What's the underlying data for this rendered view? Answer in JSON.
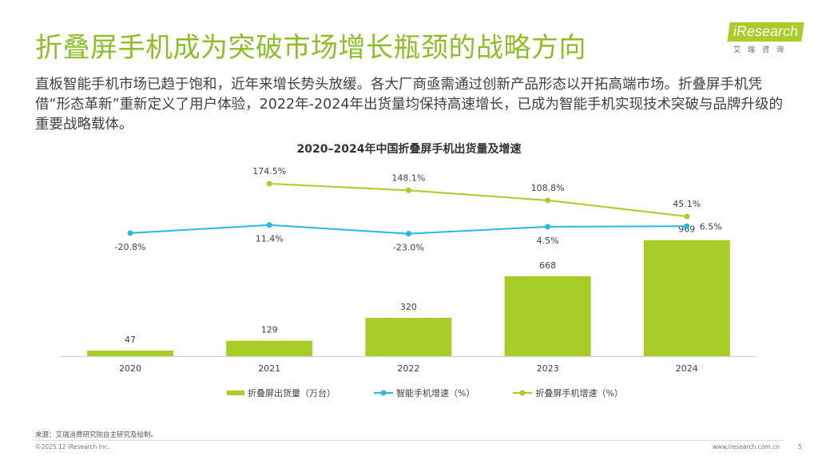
{
  "header": {
    "title": "折叠屏手机成为突破市场增长瓶颈的战略方向",
    "subtitle": "直板智能手机市场已趋于饱和，近年来增长势头放缓。各大厂商亟需通过创新产品形态以开拓高端市场。折叠屏手机凭借“形态革新”重新定义了用户体验，2022年-2024年出货量均保持高速增长，已成为智能手机实现技术突破与品牌升级的重要战略载体。"
  },
  "logo": {
    "text": "iResearch",
    "sub": "艾瑞咨询",
    "color": "#a9cd28"
  },
  "chart_data": {
    "type": "bar+line",
    "title": "2020–2024年中国折叠屏手机出货量及增速",
    "categories": [
      "2020",
      "2021",
      "2022",
      "2023",
      "2024"
    ],
    "series": [
      {
        "name": "折叠屏出货量（万台）",
        "type": "bar",
        "color": "#a9cd28",
        "values": [
          47,
          129,
          320,
          668,
          969
        ],
        "labels": [
          "47",
          "129",
          "320",
          "668",
          "969"
        ]
      },
      {
        "name": "智能手机增速（%）",
        "type": "line",
        "color": "#29b6e8",
        "values": [
          -20.8,
          11.4,
          -23.0,
          4.5,
          6.5
        ],
        "labels": [
          "-20.8%",
          "11.4%",
          "-23.0%",
          "4.5%",
          "6.5%"
        ]
      },
      {
        "name": "折叠屏手机增速（%）",
        "type": "line",
        "color": "#a9cd28",
        "values": [
          null,
          174.5,
          148.1,
          108.8,
          45.1
        ],
        "labels": [
          "",
          "174.5%",
          "148.1%",
          "108.8%",
          "45.1%"
        ]
      }
    ],
    "legend": "bottom",
    "grid": false
  },
  "footer": {
    "source": "来源：艾瑞消费研究院自主研究及绘制。",
    "copyright": "©2025.12 iResearch Inc.",
    "url": "www.iresearch.com.cn",
    "page": "5"
  }
}
